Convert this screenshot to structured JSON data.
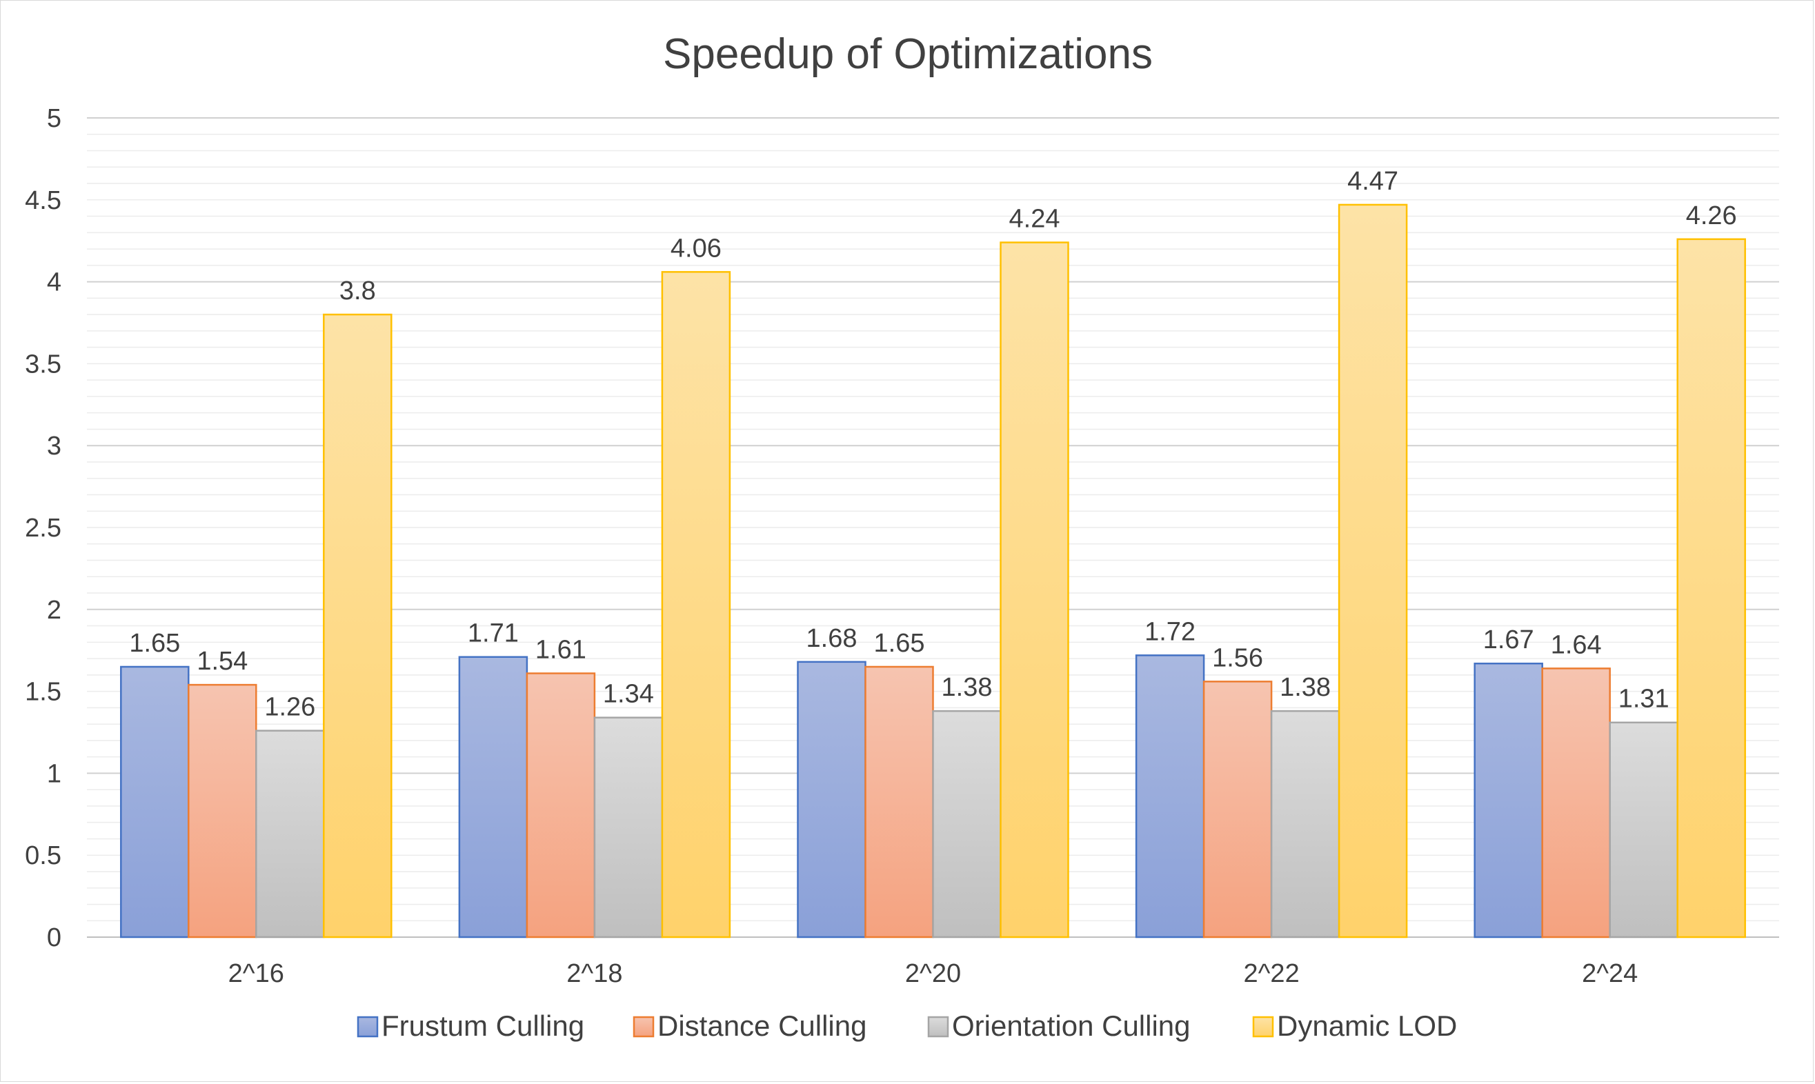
{
  "chart_data": {
    "type": "bar",
    "title": "Speedup of Optimizations",
    "xlabel": "",
    "ylabel": "",
    "categories": [
      "2^16",
      "2^18",
      "2^20",
      "2^22",
      "2^24"
    ],
    "ylim": [
      0,
      5
    ],
    "yticks": [
      "0",
      "0.5",
      "1",
      "1.5",
      "2",
      "2.5",
      "3",
      "3.5",
      "4",
      "4.5",
      "5"
    ],
    "ytick_values": [
      0,
      0.5,
      1,
      1.5,
      2,
      2.5,
      3,
      3.5,
      4,
      4.5,
      5
    ],
    "minor_gridlines": true,
    "legend_position": "bottom",
    "data_labels": true,
    "series": [
      {
        "name": "Frustum Culling",
        "values": [
          1.65,
          1.71,
          1.68,
          1.72,
          1.67
        ],
        "labels": [
          "1.65",
          "1.71",
          "1.68",
          "1.72",
          "1.67"
        ],
        "color_top": "#a9b8e0",
        "color_bottom": "#8aa0d8",
        "border": "#4472c4"
      },
      {
        "name": "Distance Culling",
        "values": [
          1.54,
          1.61,
          1.65,
          1.56,
          1.64
        ],
        "labels": [
          "1.54",
          "1.61",
          "1.65",
          "1.56",
          "1.64"
        ],
        "color_top": "#f6c4b0",
        "color_bottom": "#f5a27f",
        "border": "#ed7d31"
      },
      {
        "name": "Orientation Culling",
        "values": [
          1.26,
          1.34,
          1.38,
          1.38,
          1.31
        ],
        "labels": [
          "1.26",
          "1.34",
          "1.38",
          "1.38",
          "1.31"
        ],
        "color_top": "#dcdcdc",
        "color_bottom": "#bfbfbf",
        "border": "#a5a5a5"
      },
      {
        "name": "Dynamic LOD",
        "values": [
          3.8,
          4.06,
          4.24,
          4.47,
          4.26
        ],
        "labels": [
          "3.8",
          "4.06",
          "4.24",
          "4.47",
          "4.26"
        ],
        "color_top": "#fde3a7",
        "color_bottom": "#ffd26b",
        "border": "#ffc000"
      }
    ]
  }
}
